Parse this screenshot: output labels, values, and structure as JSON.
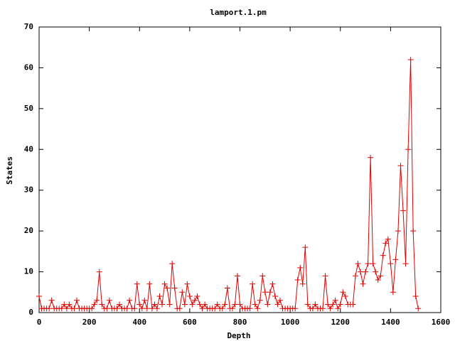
{
  "chart_data": {
    "type": "line",
    "title": "lamport.1.pm",
    "x_label": "Depth",
    "y_label": "States",
    "color": "#e00000",
    "grid": false,
    "xlim": [
      0,
      1600
    ],
    "xticks": [
      0,
      200,
      400,
      600,
      800,
      1000,
      1200,
      1400,
      1600
    ],
    "ylim": [
      0,
      70
    ],
    "yticks": [
      0,
      10,
      20,
      30,
      40,
      50,
      60,
      70
    ],
    "x": [
      0,
      10,
      20,
      30,
      40,
      50,
      60,
      70,
      80,
      90,
      100,
      110,
      120,
      130,
      140,
      150,
      160,
      170,
      180,
      190,
      200,
      210,
      220,
      230,
      240,
      250,
      260,
      270,
      280,
      290,
      300,
      310,
      320,
      330,
      340,
      350,
      360,
      370,
      380,
      390,
      400,
      410,
      420,
      430,
      440,
      450,
      460,
      470,
      480,
      490,
      500,
      510,
      520,
      530,
      540,
      550,
      560,
      570,
      580,
      590,
      600,
      610,
      620,
      630,
      640,
      650,
      660,
      670,
      680,
      690,
      700,
      710,
      720,
      730,
      740,
      750,
      760,
      770,
      780,
      790,
      800,
      810,
      820,
      830,
      840,
      850,
      860,
      870,
      880,
      890,
      900,
      910,
      920,
      930,
      940,
      950,
      960,
      970,
      980,
      990,
      1000,
      1010,
      1020,
      1030,
      1040,
      1050,
      1060,
      1070,
      1080,
      1090,
      1100,
      1110,
      1120,
      1130,
      1140,
      1150,
      1160,
      1170,
      1180,
      1190,
      1200,
      1210,
      1220,
      1230,
      1240,
      1250,
      1260,
      1270,
      1280,
      1290,
      1300,
      1310,
      1320,
      1330,
      1340,
      1350,
      1360,
      1370,
      1380,
      1390,
      1400,
      1410,
      1420,
      1430,
      1440,
      1450,
      1460,
      1470,
      1480,
      1490,
      1500,
      1510
    ],
    "values": [
      4,
      1,
      1,
      1,
      1,
      3,
      1,
      1,
      1,
      1,
      2,
      1,
      2,
      1,
      1,
      3,
      1,
      1,
      1,
      1,
      1,
      1,
      2,
      3,
      10,
      2,
      1,
      1,
      3,
      1,
      1,
      1,
      2,
      1,
      1,
      1,
      3,
      1,
      1,
      7,
      2,
      1,
      3,
      1,
      7,
      1,
      2,
      1,
      4,
      2,
      7,
      6,
      2,
      12,
      6,
      1,
      1,
      5,
      2,
      7,
      4,
      2,
      3,
      4,
      2,
      1,
      2,
      1,
      1,
      1,
      1,
      2,
      1,
      1,
      2,
      6,
      1,
      1,
      2,
      9,
      2,
      1,
      1,
      1,
      1,
      7,
      2,
      1,
      3,
      9,
      5,
      2,
      5,
      7,
      4,
      2,
      3,
      1,
      1,
      1,
      1,
      1,
      1,
      8,
      11,
      7,
      16,
      2,
      1,
      1,
      2,
      1,
      1,
      1,
      9,
      2,
      1,
      2,
      3,
      1,
      2,
      5,
      4,
      2,
      2,
      2,
      9,
      12,
      10,
      7,
      10,
      12,
      38,
      12,
      10,
      8,
      9,
      14,
      17,
      18,
      12,
      5,
      13,
      20,
      36,
      25,
      12,
      40,
      62,
      20,
      4,
      1
    ]
  }
}
